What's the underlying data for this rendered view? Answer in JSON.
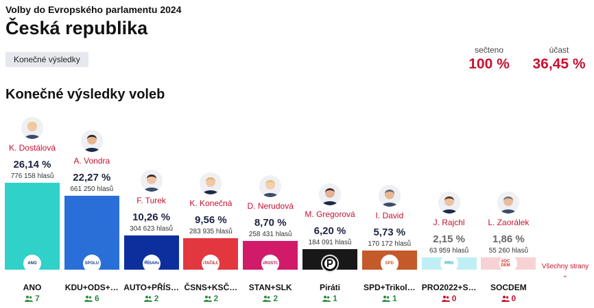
{
  "header": {
    "supertitle": "Volby do Evropského parlamentu 2024",
    "title": "Česká republika",
    "badge": "Konečné výsledky"
  },
  "stats": {
    "counted_label": "sečteno",
    "counted_value": "100 %",
    "turnout_label": "účast",
    "turnout_value": "36,45 %"
  },
  "section_title": "Konečné výsledky voleb",
  "more_link": "Všechny strany",
  "parties": [
    {
      "candidate": "K. Dostálová",
      "percent": "26,14 %",
      "percent_value": 26.14,
      "votes": "776 158 hlasů",
      "party": "ANO",
      "seats": "7",
      "color": "#2fd1c9",
      "logo": "ANO",
      "logo_color": "#1f2a6b"
    },
    {
      "candidate": "A. Vondra",
      "percent": "22,27 %",
      "percent_value": 22.27,
      "votes": "661 250 hlasů",
      "party": "KDU+ODS+…",
      "seats": "6",
      "color": "#2a6fd8",
      "logo": "SPOLU",
      "logo_color": "#1f3f8f"
    },
    {
      "candidate": "F. Turek",
      "percent": "10,26 %",
      "percent_value": 10.26,
      "votes": "304 623 hlasů",
      "party": "AUTO+PŘÍS…",
      "seats": "2",
      "color": "#0d2f9e",
      "logo": "PŘÍSAHA",
      "logo_color": "#0d2f9e"
    },
    {
      "candidate": "K. Konečná",
      "percent": "9,56 %",
      "percent_value": 9.56,
      "votes": "283 935 hlasů",
      "party": "ČSNS+KSČ…",
      "seats": "2",
      "color": "#e3373f",
      "logo": "STAČILO!",
      "logo_color": "#c21e28"
    },
    {
      "candidate": "D. Nerudová",
      "percent": "8,70 %",
      "percent_value": 8.7,
      "votes": "258 431 hlasů",
      "party": "STAN+SLK",
      "seats": "2",
      "color": "#d21a6a",
      "logo": "STAROSTOVÉ",
      "logo_color": "#b3155a"
    },
    {
      "candidate": "M. Gregorová",
      "percent": "6,20 %",
      "percent_value": 6.2,
      "votes": "184 091 hlasů",
      "party": "Piráti",
      "seats": "1",
      "color": "#181818",
      "logo": "P",
      "logo_color": "#111111"
    },
    {
      "candidate": "I. David",
      "percent": "5,73 %",
      "percent_value": 5.73,
      "votes": "170 172 hlasů",
      "party": "SPD+Trikol…",
      "seats": "1",
      "color": "#c45a2a",
      "logo": "SPD",
      "logo_color": "#c45a2a"
    },
    {
      "candidate": "J. Rajchl",
      "percent": "2,15 %",
      "percent_value": 2.15,
      "votes": "63 959 hlasů",
      "party": "PRO2022+S…",
      "seats": "0",
      "color": "#bfeff5",
      "logo": "PRO",
      "logo_color": "#1aa6c4"
    },
    {
      "candidate": "L. Zaorálek",
      "percent": "1,86 %",
      "percent_value": 1.86,
      "votes": "55 260 hlasů",
      "party": "SOCDEM",
      "seats": "0",
      "color": "#f6d2d4",
      "logo": "SOC DEM",
      "logo_color": "#d32f2f"
    }
  ]
}
